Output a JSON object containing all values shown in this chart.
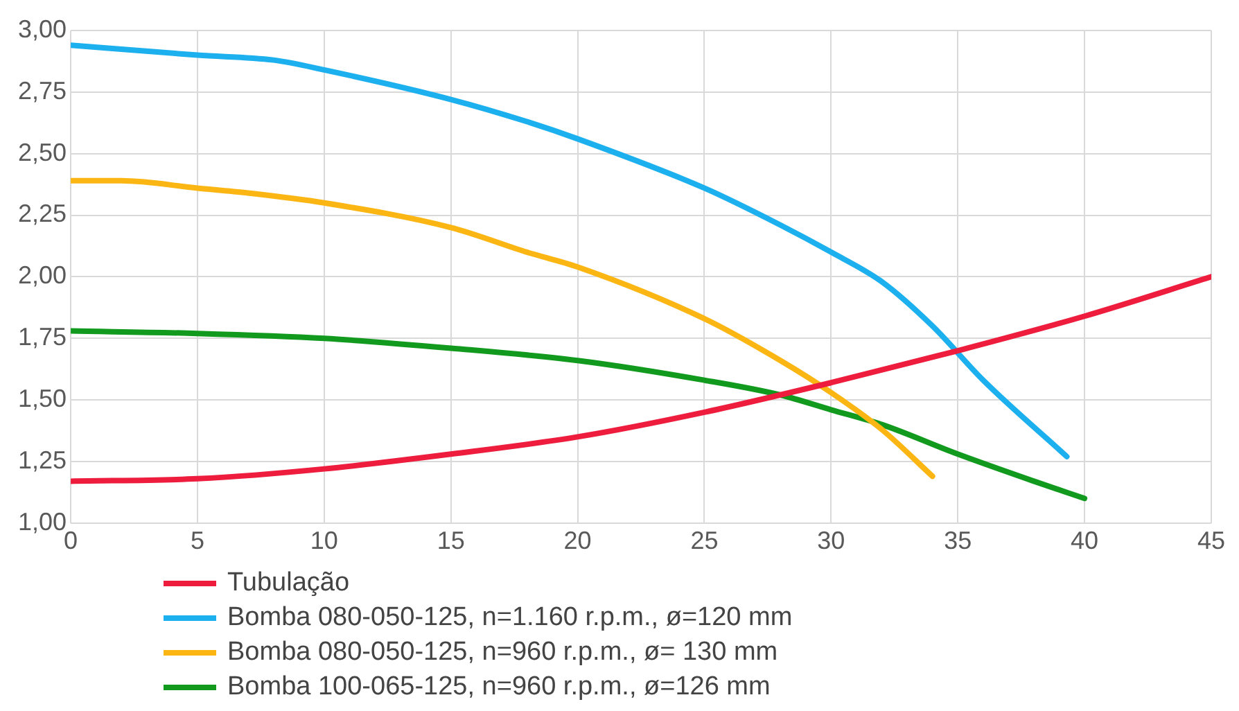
{
  "chart_data": {
    "type": "line",
    "xlim": [
      0,
      45
    ],
    "xticks": [
      0,
      5,
      10,
      15,
      20,
      25,
      30,
      35,
      40,
      45
    ],
    "ylim": [
      1,
      3
    ],
    "yticks": [
      {
        "value": 1,
        "label": "1,00"
      },
      {
        "value": 1.25,
        "label": "1,25"
      },
      {
        "value": 1.5,
        "label": "1,50"
      },
      {
        "value": 1.75,
        "label": "1,75"
      },
      {
        "value": 2,
        "label": "2,00"
      },
      {
        "value": 2.25,
        "label": "2,25"
      },
      {
        "value": 2.5,
        "label": "2,50"
      },
      {
        "value": 2.75,
        "label": "2,75"
      },
      {
        "value": 3,
        "label": "3,00"
      }
    ],
    "grid": true,
    "legend": "bottom",
    "marker": "none",
    "line_style": "solid",
    "series": [
      {
        "name": "Tubulação",
        "color": "#ee1c3d",
        "x": [
          0,
          5,
          10,
          15,
          20,
          25,
          30,
          35,
          40,
          45
        ],
        "values": [
          1.17,
          1.18,
          1.22,
          1.28,
          1.35,
          1.45,
          1.57,
          1.7,
          1.84,
          2.0
        ]
      },
      {
        "name": "Bomba 080-050-125, n=1.160 r.p.m., ø=120 mm",
        "color": "#1cb0ef",
        "x": [
          0,
          5,
          8,
          10,
          15,
          18,
          20,
          25,
          28,
          30,
          32,
          34,
          36,
          39.3
        ],
        "values": [
          2.94,
          2.9,
          2.88,
          2.84,
          2.72,
          2.63,
          2.56,
          2.36,
          2.21,
          2.1,
          1.98,
          1.8,
          1.58,
          1.27
        ]
      },
      {
        "name": "Bomba 080-050-125, n=960 r.p.m., ø= 130 mm",
        "color": "#fbb614",
        "x": [
          0,
          2,
          5,
          7,
          10,
          15,
          18,
          20,
          25,
          28,
          30,
          32,
          34
        ],
        "values": [
          2.39,
          2.39,
          2.36,
          2.34,
          2.3,
          2.2,
          2.1,
          2.04,
          1.83,
          1.66,
          1.53,
          1.38,
          1.19
        ]
      },
      {
        "name": "Bomba 100-065-125, n=960 r.p.m., ø=126 mm",
        "color": "#119a1e",
        "x": [
          0,
          5,
          10,
          15,
          20,
          25,
          28,
          30,
          32,
          35,
          38,
          40
        ],
        "values": [
          1.78,
          1.77,
          1.75,
          1.71,
          1.66,
          1.58,
          1.52,
          1.46,
          1.4,
          1.28,
          1.17,
          1.1
        ]
      }
    ]
  }
}
